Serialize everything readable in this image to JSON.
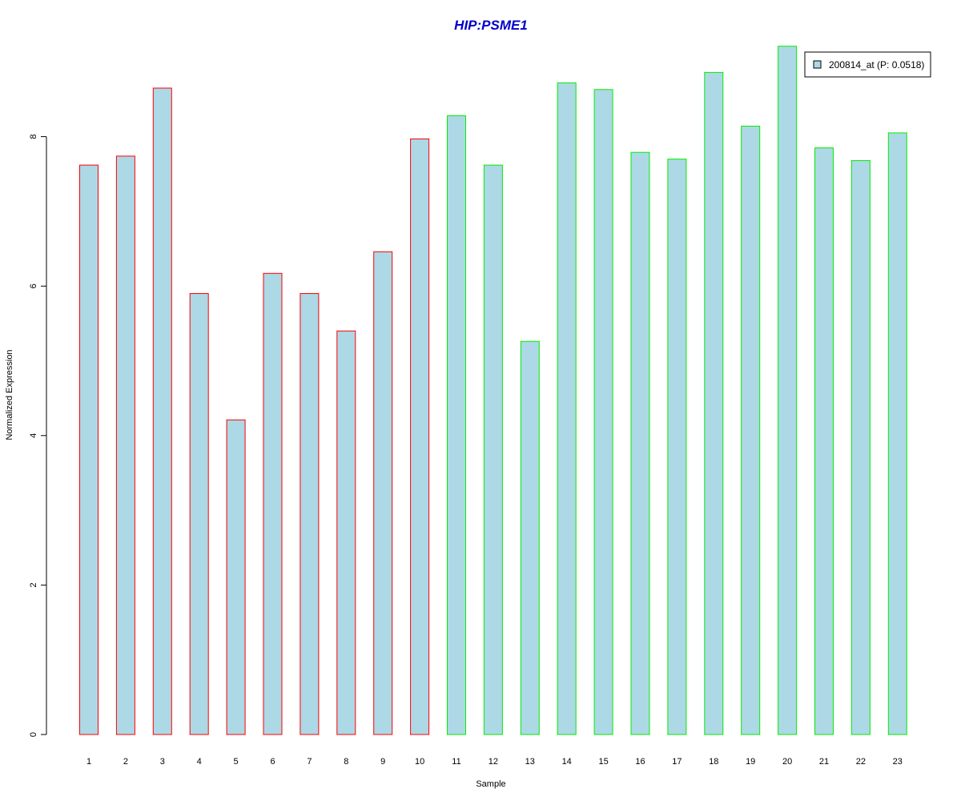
{
  "chart_data": {
    "type": "bar",
    "title": "HIP:PSME1",
    "xlabel": "Sample",
    "ylabel": "Normalized Expression",
    "categories": [
      "1",
      "2",
      "3",
      "4",
      "5",
      "6",
      "7",
      "8",
      "9",
      "10",
      "11",
      "12",
      "13",
      "14",
      "15",
      "16",
      "17",
      "18",
      "19",
      "20",
      "21",
      "22",
      "23"
    ],
    "series": [
      {
        "name": "200814_at (P: 0.0518)",
        "values": [
          7.62,
          7.74,
          8.65,
          5.9,
          4.21,
          6.17,
          5.9,
          5.4,
          6.46,
          7.97,
          8.28,
          7.62,
          5.26,
          8.72,
          8.63,
          7.79,
          7.7,
          8.86,
          8.14,
          9.21,
          7.85,
          7.68,
          8.05
        ]
      }
    ],
    "group_colors": [
      "#ff0000",
      "#ff0000",
      "#ff0000",
      "#ff0000",
      "#ff0000",
      "#ff0000",
      "#ff0000",
      "#ff0000",
      "#ff0000",
      "#ff0000",
      "#00ee00",
      "#00ee00",
      "#00ee00",
      "#00ee00",
      "#00ee00",
      "#00ee00",
      "#00ee00",
      "#00ee00",
      "#00ee00",
      "#00ee00",
      "#00ee00",
      "#00ee00",
      "#00ee00"
    ],
    "bar_fill": "#add8e6",
    "title_color": "#0000cd",
    "yticks": [
      0,
      2,
      4,
      6,
      8
    ],
    "ylim": [
      0,
      9.21
    ],
    "grid": false,
    "legend_position": "top-right"
  }
}
